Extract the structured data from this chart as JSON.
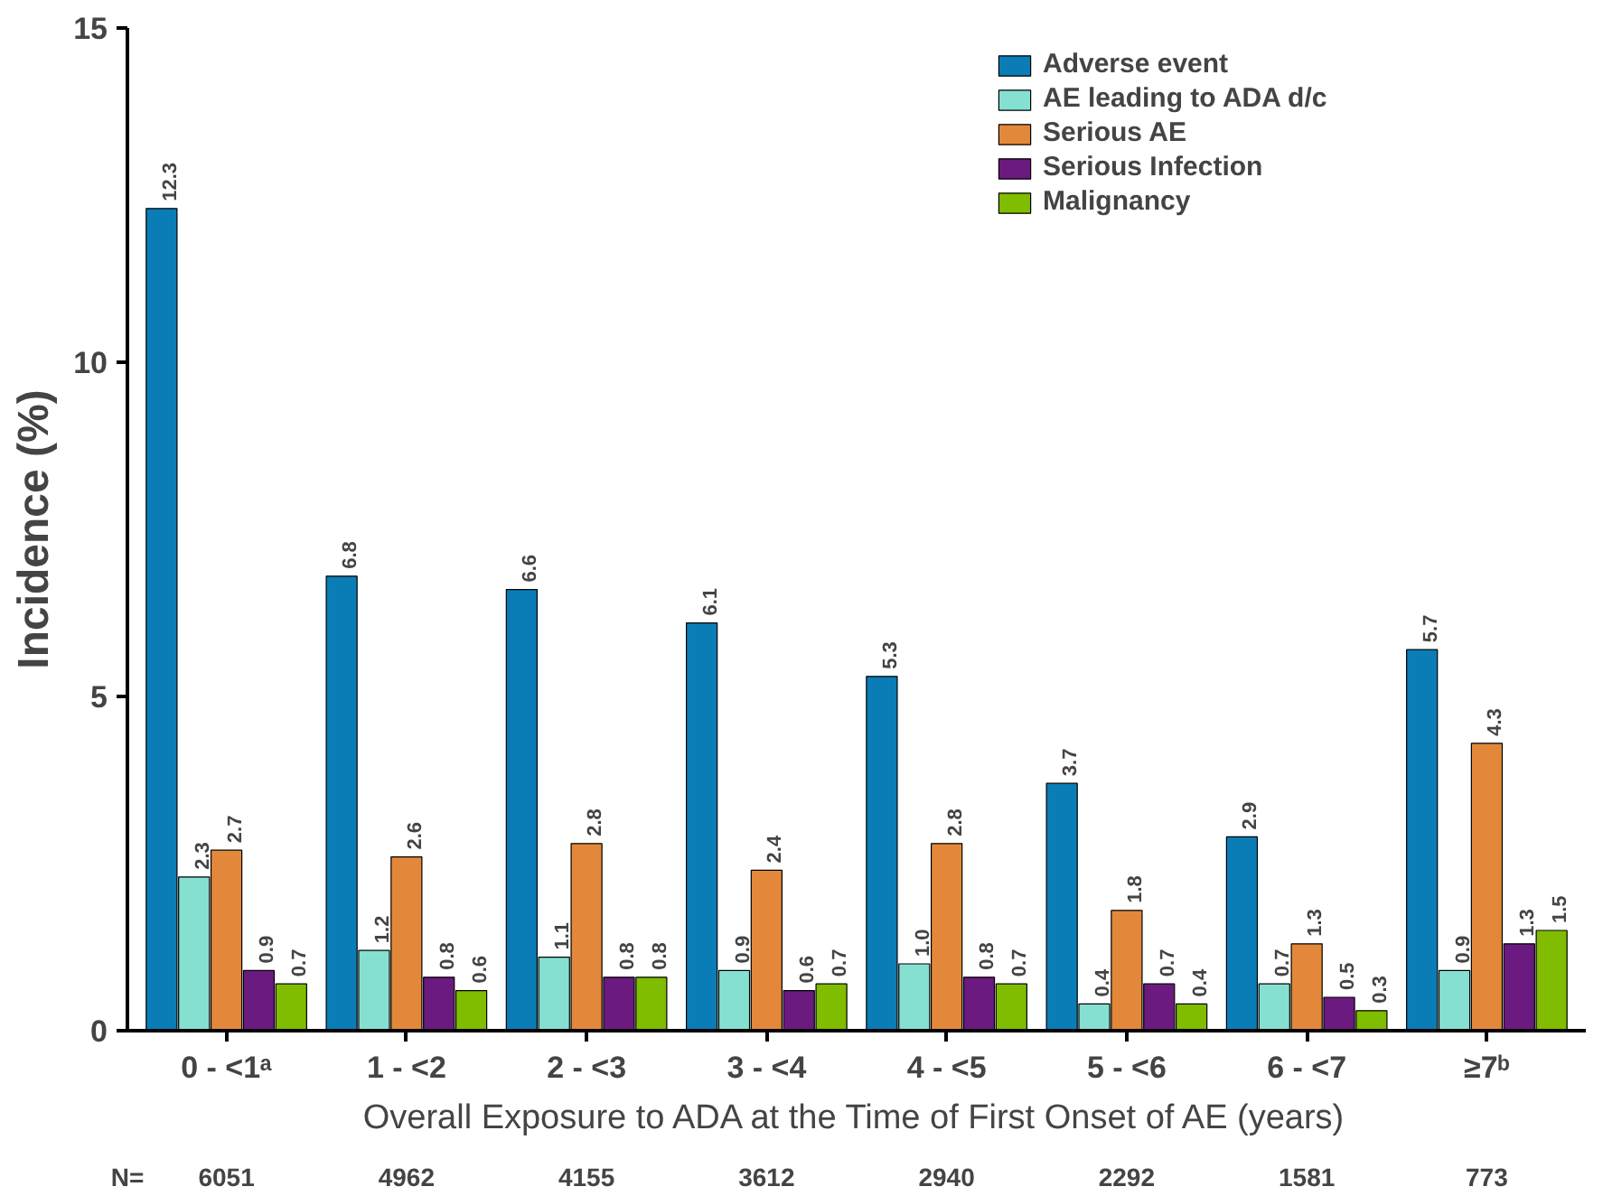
{
  "chart_data": {
    "type": "bar",
    "ylabel": "Incidence (%)",
    "xlabel": "Overall Exposure to ADA at the Time of First Onset of AE (years)",
    "categories": [
      "0 - <1ᵃ",
      "1 - <2",
      "2 - <3",
      "3 - <4",
      "4 - <5",
      "5 - <6",
      "6 - <7",
      "≥7ᵇ"
    ],
    "series": [
      {
        "name": "Adverse event",
        "color": "#0a7db6",
        "values": [
          12.3,
          6.8,
          6.6,
          6.1,
          5.3,
          3.7,
          2.9,
          5.7
        ],
        "value_labels": [
          "12.3",
          "6.8",
          "6.6",
          "6.1",
          "5.3",
          "3.7",
          "2.9",
          "5.7"
        ]
      },
      {
        "name": "AE leading to ADA d/c",
        "color": "#86e0d2",
        "values": [
          2.3,
          1.2,
          1.1,
          0.9,
          1.0,
          0.4,
          0.7,
          0.9
        ],
        "value_labels": [
          "2.3",
          "1.2",
          "1.1",
          "0.9",
          "1.0",
          "0.4",
          "0.7",
          "0.9"
        ]
      },
      {
        "name": "Serious AE",
        "color": "#e3883a",
        "values": [
          2.7,
          2.6,
          2.8,
          2.4,
          2.8,
          1.8,
          1.3,
          4.3
        ],
        "value_labels": [
          "2.7",
          "2.6",
          "2.8",
          "2.4",
          "2.8",
          "1.8",
          "1.3",
          "4.3"
        ]
      },
      {
        "name": "Serious Infection",
        "color": "#6b1a80",
        "values": [
          0.9,
          0.8,
          0.8,
          0.6,
          0.8,
          0.7,
          0.5,
          1.3
        ],
        "value_labels": [
          "0.9",
          "0.8",
          "0.8",
          "0.6",
          "0.8",
          "0.7",
          "0.5",
          "1.3"
        ]
      },
      {
        "name": "Malignancy",
        "color": "#80bc00",
        "values": [
          0.7,
          0.6,
          0.8,
          0.7,
          0.7,
          0.4,
          0.3,
          1.5
        ],
        "value_labels": [
          "0.7",
          "0.6",
          "0.8",
          "0.7",
          "0.7",
          "0.4",
          "0.3",
          "1.5"
        ]
      }
    ],
    "ylim": [
      0,
      15
    ],
    "yticks": [
      0,
      5,
      10,
      15
    ],
    "grid": false,
    "legend": "top right",
    "annotations": [
      "N=",
      "6051",
      "4962",
      "4155",
      "3612",
      "2940",
      "2292",
      "1581",
      "773"
    ]
  }
}
